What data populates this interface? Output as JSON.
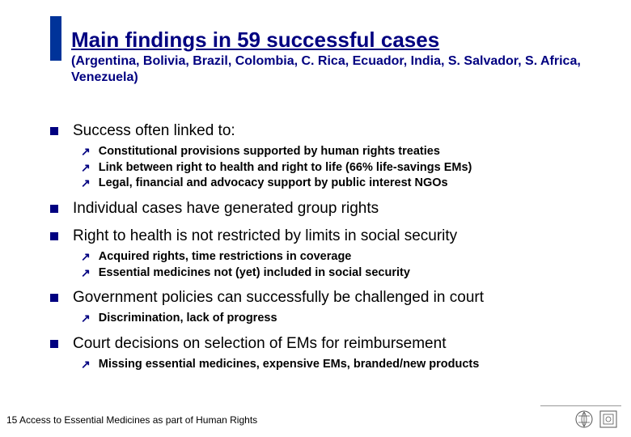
{
  "header": {
    "title": "Main findings in 59 successful cases",
    "subtitle": "(Argentina, Bolivia, Brazil, Colombia, C. Rica, Ecuador, India, S. Salvador, S. Africa, Venezuela)"
  },
  "bullets": [
    {
      "text": "Success often linked to:",
      "subs": [
        "Constitutional provisions supported by human rights treaties",
        "Link between right to health and right to life (66% life-savings EMs)",
        "Legal, financial and advocacy support by public interest NGOs"
      ]
    },
    {
      "text": "Individual cases have generated group rights",
      "subs": []
    },
    {
      "text": "Right to health is not restricted by limits in social security",
      "subs": [
        "Acquired rights, time restrictions in coverage",
        "Essential medicines not (yet) included in social security"
      ]
    },
    {
      "text": "Government policies can successfully be challenged in court",
      "subs": [
        "Discrimination, lack of progress"
      ]
    },
    {
      "text": "Court decisions on selection of EMs for reimbursement",
      "subs": [
        "Missing essential medicines, expensive EMs, branded/new products"
      ]
    }
  ],
  "footer": "15 Access to Essential Medicines as part of Human Rights",
  "colors": {
    "accent": "#000080",
    "bar": "#003399",
    "text": "#000000",
    "bg": "#ffffff"
  }
}
